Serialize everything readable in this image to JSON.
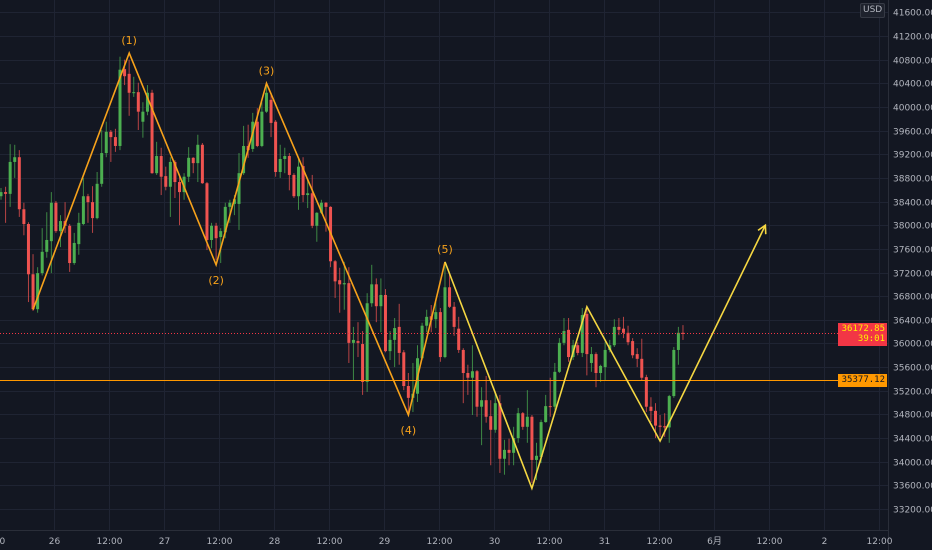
{
  "currency": "USD",
  "last_price": {
    "value": "36172.85",
    "countdown": "39:01",
    "color": "#f23645"
  },
  "horizontal_level": {
    "value": "35377.12",
    "color": "#ff9800"
  },
  "colors": {
    "background": "#131722",
    "grid": "#1f2433",
    "up": "#4caf50",
    "down": "#ef5350",
    "wave_impulse": "#f7a21b",
    "wave_projection": "#f5d742"
  },
  "chart_data": {
    "type": "candlestick",
    "interval": "1h",
    "start_time": "05-25 12:00",
    "ohlc_fields": [
      "open",
      "high",
      "low",
      "close"
    ],
    "candles": [
      [
        38490,
        38630,
        38430,
        38560
      ],
      [
        38560,
        38650,
        38040,
        38530
      ],
      [
        38530,
        39370,
        38310,
        39070
      ],
      [
        39070,
        39360,
        38800,
        39150
      ],
      [
        39150,
        39270,
        38140,
        38270
      ],
      [
        38270,
        38380,
        37830,
        38020
      ],
      [
        38020,
        38050,
        36700,
        37170
      ],
      [
        37170,
        37510,
        36550,
        36580
      ],
      [
        36580,
        37290,
        36520,
        37190
      ],
      [
        37190,
        37950,
        37150,
        37550
      ],
      [
        37550,
        38220,
        37450,
        37750
      ],
      [
        37730,
        38560,
        37190,
        38380
      ],
      [
        38380,
        38410,
        37870,
        37900
      ],
      [
        37900,
        38170,
        37630,
        38070
      ],
      [
        38070,
        38390,
        37870,
        37990
      ],
      [
        37990,
        38020,
        37210,
        37360
      ],
      [
        37360,
        37870,
        37330,
        37700
      ],
      [
        37680,
        38210,
        37500,
        38040
      ],
      [
        38020,
        38800,
        38000,
        38490
      ],
      [
        38490,
        38530,
        38040,
        38390
      ],
      [
        38390,
        38660,
        37870,
        38120
      ],
      [
        38120,
        38900,
        38100,
        38700
      ],
      [
        38700,
        39610,
        38650,
        39220
      ],
      [
        39220,
        39750,
        39150,
        39580
      ],
      [
        39580,
        39610,
        39070,
        39490
      ],
      [
        39490,
        39630,
        39240,
        39340
      ],
      [
        39340,
        40850,
        39270,
        40630
      ],
      [
        40640,
        40800,
        40370,
        40520
      ],
      [
        40560,
        40800,
        39850,
        40240
      ],
      [
        40240,
        40510,
        40170,
        40250
      ],
      [
        40250,
        40410,
        39610,
        39920
      ],
      [
        39750,
        40080,
        39480,
        39920
      ],
      [
        39920,
        40370,
        39860,
        40240
      ],
      [
        40240,
        40290,
        38870,
        38880
      ],
      [
        38880,
        39410,
        38850,
        39170
      ],
      [
        39170,
        39310,
        38510,
        38820
      ],
      [
        38830,
        38990,
        38590,
        38650
      ],
      [
        38650,
        39150,
        38140,
        39070
      ],
      [
        39070,
        39100,
        38460,
        38730
      ],
      [
        38730,
        38850,
        38000,
        38560
      ],
      [
        38560,
        38880,
        38430,
        38820
      ],
      [
        38820,
        39320,
        38730,
        39140
      ],
      [
        39140,
        39150,
        38880,
        39050
      ],
      [
        39050,
        39530,
        38730,
        39360
      ],
      [
        39360,
        39390,
        38700,
        38710
      ],
      [
        38710,
        38730,
        37580,
        37750
      ],
      [
        37750,
        38040,
        37610,
        37990
      ],
      [
        37990,
        38040,
        37410,
        37780
      ],
      [
        37800,
        37950,
        37360,
        37900
      ],
      [
        37880,
        38380,
        37780,
        38310
      ],
      [
        38310,
        38430,
        38040,
        38380
      ],
      [
        38360,
        38510,
        38170,
        38440
      ],
      [
        38360,
        39220,
        37920,
        38880
      ],
      [
        38880,
        39680,
        38850,
        39340
      ],
      [
        39340,
        39700,
        39140,
        39270
      ],
      [
        39290,
        39900,
        39240,
        39750
      ],
      [
        39750,
        39980,
        39320,
        39340
      ],
      [
        39340,
        40080,
        39320,
        39920
      ],
      [
        39920,
        40410,
        39900,
        40240
      ],
      [
        40120,
        40240,
        39490,
        39730
      ],
      [
        39750,
        39780,
        38820,
        38900
      ],
      [
        38900,
        39360,
        38800,
        39120
      ],
      [
        39120,
        39310,
        38880,
        39170
      ],
      [
        39170,
        39220,
        38590,
        38850
      ],
      [
        38850,
        38880,
        38460,
        38490
      ],
      [
        38490,
        39150,
        38260,
        38990
      ],
      [
        39000,
        39150,
        38390,
        38510
      ],
      [
        38510,
        38770,
        38290,
        38540
      ],
      [
        38540,
        38850,
        37950,
        37990
      ],
      [
        37990,
        38220,
        37720,
        38210
      ],
      [
        38210,
        38430,
        38190,
        38380
      ],
      [
        38380,
        38390,
        37890,
        38310
      ],
      [
        38310,
        38320,
        37290,
        37390
      ],
      [
        37390,
        37410,
        36770,
        37050
      ],
      [
        37070,
        37280,
        36520,
        37000
      ],
      [
        37000,
        37380,
        36570,
        37020
      ],
      [
        37020,
        37290,
        35670,
        36010
      ],
      [
        36010,
        36280,
        35380,
        36060
      ],
      [
        36040,
        36360,
        35770,
        36010
      ],
      [
        35990,
        36210,
        35130,
        35350
      ],
      [
        35350,
        36850,
        35180,
        36680
      ],
      [
        36680,
        37330,
        36620,
        37000
      ],
      [
        37000,
        37100,
        36360,
        36630
      ],
      [
        36630,
        37100,
        36190,
        36820
      ],
      [
        36820,
        36920,
        35850,
        35870
      ],
      [
        35870,
        36210,
        35720,
        36060
      ],
      [
        36060,
        36430,
        35600,
        36260
      ],
      [
        36280,
        36670,
        35640,
        35840
      ],
      [
        35850,
        35890,
        35210,
        35280
      ],
      [
        35280,
        35500,
        34820,
        35080
      ],
      [
        35080,
        35670,
        34840,
        35150
      ],
      [
        35150,
        35970,
        35010,
        35750
      ],
      [
        35750,
        36350,
        35720,
        36300
      ],
      [
        36300,
        36570,
        36190,
        36450
      ],
      [
        36460,
        36650,
        36190,
        36400
      ],
      [
        36410,
        36700,
        36260,
        36530
      ],
      [
        36530,
        36600,
        35690,
        35770
      ],
      [
        35770,
        37360,
        35750,
        36950
      ],
      [
        36950,
        37160,
        36600,
        36620
      ],
      [
        36620,
        36700,
        36130,
        36280
      ],
      [
        36250,
        36450,
        35840,
        35890
      ],
      [
        35890,
        35920,
        34990,
        35500
      ],
      [
        35500,
        35640,
        35130,
        35420
      ],
      [
        35420,
        35970,
        34790,
        35530
      ],
      [
        35530,
        35550,
        34760,
        34930
      ],
      [
        34930,
        35260,
        34280,
        35040
      ],
      [
        35040,
        35450,
        34660,
        34760
      ],
      [
        34770,
        35040,
        33940,
        34540
      ],
      [
        34540,
        35160,
        34490,
        34990
      ],
      [
        34990,
        35130,
        33810,
        34050
      ],
      [
        34050,
        34370,
        33780,
        34200
      ],
      [
        34200,
        34390,
        33940,
        34150
      ],
      [
        34150,
        34590,
        33940,
        34400
      ],
      [
        34400,
        34910,
        34320,
        34820
      ],
      [
        34820,
        34840,
        34540,
        34590
      ],
      [
        34590,
        35210,
        34320,
        34760
      ],
      [
        34760,
        34790,
        33640,
        34030
      ],
      [
        34030,
        34320,
        33690,
        34100
      ],
      [
        34080,
        34710,
        33980,
        34670
      ],
      [
        34670,
        35130,
        34660,
        34940
      ],
      [
        34940,
        35420,
        34760,
        34930
      ],
      [
        34930,
        35670,
        34880,
        35520
      ],
      [
        35520,
        36090,
        35500,
        36010
      ],
      [
        36010,
        36430,
        35970,
        36210
      ],
      [
        36230,
        36430,
        35690,
        35770
      ],
      [
        35770,
        36060,
        35720,
        35970
      ],
      [
        35970,
        36020,
        35800,
        35840
      ],
      [
        35840,
        36600,
        35770,
        36480
      ],
      [
        36500,
        36600,
        35460,
        35820
      ],
      [
        35670,
        35940,
        35520,
        35820
      ],
      [
        35820,
        35850,
        35260,
        35500
      ],
      [
        35500,
        35640,
        35350,
        35620
      ],
      [
        35600,
        36020,
        35380,
        35890
      ],
      [
        35890,
        36060,
        35850,
        35970
      ],
      [
        35970,
        36410,
        35940,
        36280
      ],
      [
        36280,
        36430,
        36140,
        36230
      ],
      [
        36250,
        36450,
        36090,
        36180
      ],
      [
        36180,
        36300,
        35970,
        36020
      ],
      [
        36040,
        36090,
        35750,
        35800
      ],
      [
        35820,
        35920,
        35600,
        35740
      ],
      [
        35740,
        36080,
        35380,
        35420
      ],
      [
        35430,
        35470,
        34840,
        34930
      ],
      [
        34930,
        35090,
        34670,
        34860
      ],
      [
        34860,
        34990,
        34400,
        34610
      ],
      [
        34610,
        34790,
        34420,
        34590
      ],
      [
        34600,
        34820,
        34420,
        34580
      ],
      [
        34580,
        35130,
        34320,
        35110
      ],
      [
        35110,
        35940,
        35080,
        35890
      ],
      [
        35890,
        36280,
        35640,
        36180
      ],
      [
        36180,
        36310,
        36060,
        36172.85
      ]
    ],
    "y_axis": {
      "range": [
        33000,
        41700
      ],
      "ticks": [
        "41600.00",
        "41200.00",
        "40800.00",
        "40400.00",
        "40000.00",
        "39600.00",
        "39200.00",
        "38800.00",
        "38400.00",
        "38000.00",
        "37600.00",
        "37200.00",
        "36800.00",
        "36400.00",
        "36000.00",
        "35600.00",
        "35200.00",
        "34800.00",
        "34400.00",
        "34000.00",
        "33600.00",
        "33200.00"
      ]
    },
    "x_axis": {
      "ticks": [
        "00",
        "26",
        "12:00",
        "27",
        "12:00",
        "28",
        "12:00",
        "29",
        "12:00",
        "30",
        "12:00",
        "31",
        "12:00",
        "6月",
        "12:00",
        "2",
        "12:00"
      ]
    },
    "grid": true,
    "wave_impulse": [
      {
        "time": "05-25 19:00",
        "price": 36570,
        "label": ""
      },
      {
        "time": "05-26 16:00",
        "price": 40910,
        "label": "(1)",
        "label_pos": "above"
      },
      {
        "time": "05-27 11:00",
        "price": 37330,
        "label": "(2)",
        "label_pos": "below"
      },
      {
        "time": "05-27 22:00",
        "price": 40400,
        "label": "(3)",
        "label_pos": "above"
      },
      {
        "time": "05-29 05:00",
        "price": 34790,
        "label": "(4)",
        "label_pos": "below"
      },
      {
        "time": "05-29 13:00",
        "price": 37380,
        "label": "(5)",
        "label_pos": "above"
      }
    ],
    "wave_projection": [
      {
        "time": "05-29 13:00",
        "price": 37380
      },
      {
        "time": "05-30 08:00",
        "price": 33550
      },
      {
        "time": "05-30 20:00",
        "price": 36620
      },
      {
        "time": "05-31 12:00",
        "price": 34350
      },
      {
        "time": "06-01 11:00",
        "price": 38000
      }
    ]
  }
}
